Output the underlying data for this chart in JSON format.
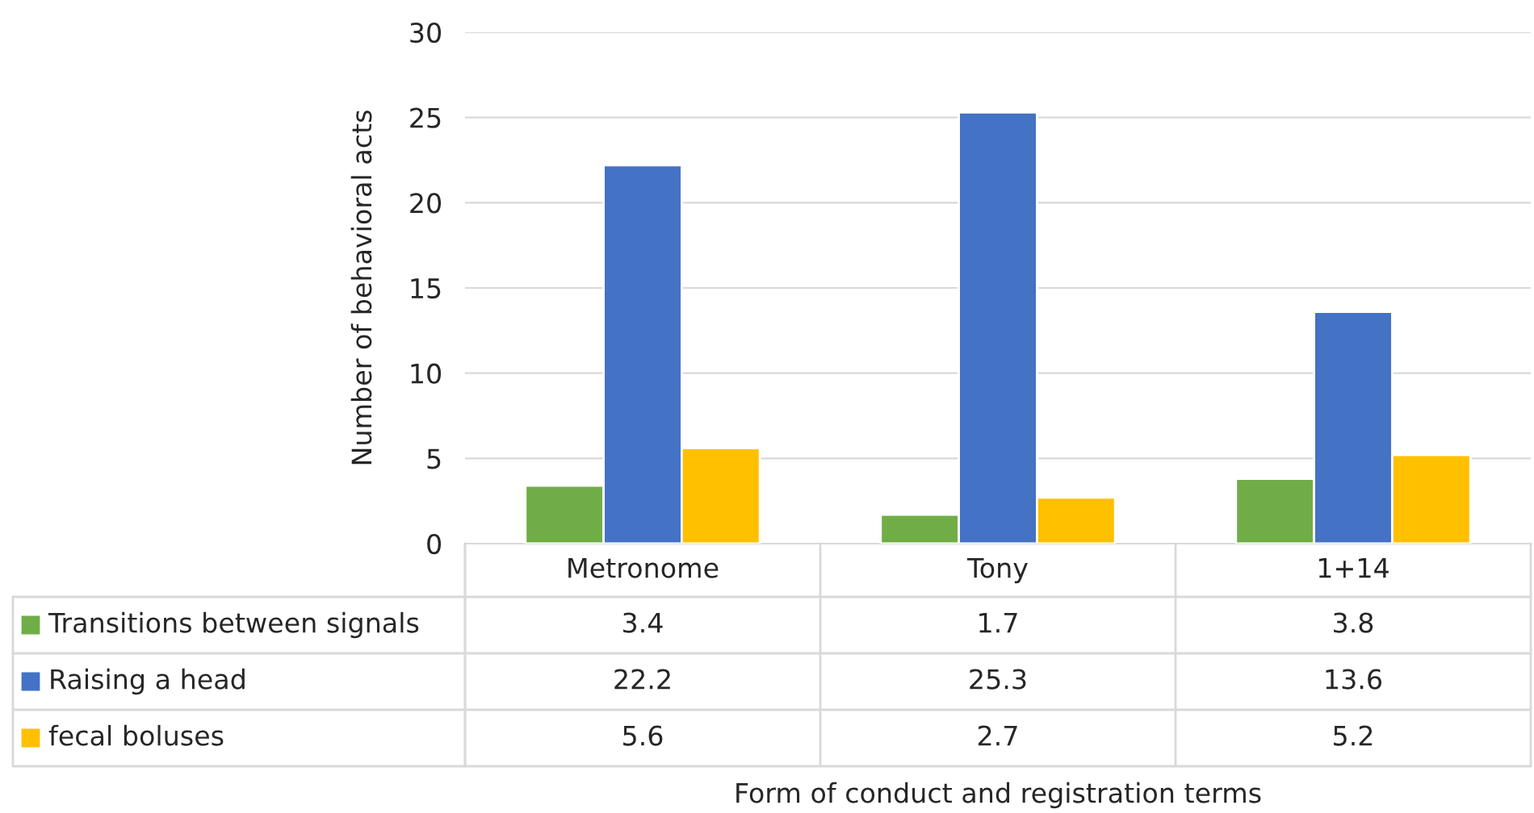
{
  "chart_data": {
    "type": "bar",
    "annotations": [
      "Form of conduct and registration terms"
    ],
    "ylabel": "Number of behavioral acts",
    "categories": [
      "Metronome",
      "Tony",
      "1+14"
    ],
    "series": [
      {
        "name": "Transitions between signals",
        "color": "#70ad47",
        "values": [
          3.4,
          1.7,
          3.8
        ]
      },
      {
        "name": "Raising a head",
        "color": "#4472c4",
        "values": [
          22.2,
          25.3,
          13.6
        ]
      },
      {
        "name": "fecal boluses",
        "color": "#ffc000",
        "values": [
          5.6,
          2.7,
          5.2
        ]
      }
    ],
    "ylim": [
      0,
      30
    ],
    "yticks": [
      0,
      5,
      10,
      15,
      20,
      25,
      30
    ],
    "grid": "y",
    "data_labels": true,
    "legend": "bottom left"
  }
}
